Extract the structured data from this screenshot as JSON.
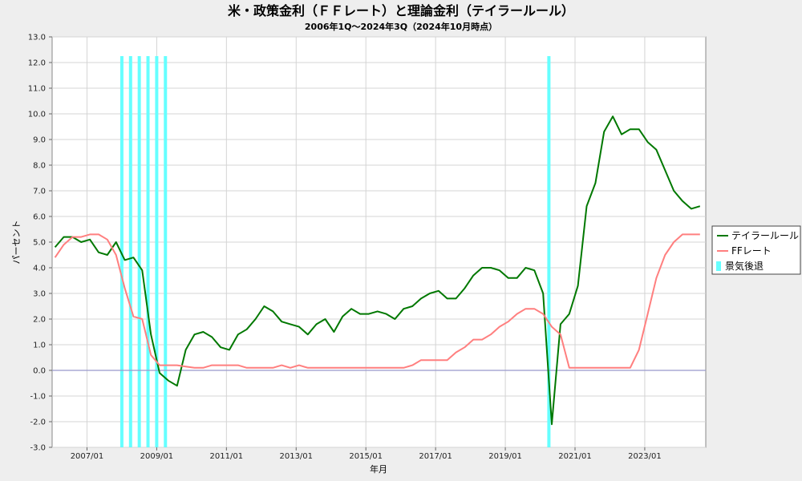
{
  "chart_data": {
    "type": "line",
    "title": "米・政策金利（ＦＦレート）と理論金利（テイラールール）",
    "subtitle": "2006年1Q～2024年3Q（2024年10月時点）",
    "xlabel": "年月",
    "ylabel": "パーセント",
    "ylim": [
      -3.0,
      13.0
    ],
    "yticks": [
      "-3.0",
      "-2.0",
      "-1.0",
      "0.0",
      "1.0",
      "2.0",
      "3.0",
      "4.0",
      "5.0",
      "6.0",
      "7.0",
      "8.0",
      "9.0",
      "10.0",
      "11.0",
      "12.0",
      "13.0"
    ],
    "xlim": [
      "2006-01",
      "2024-10"
    ],
    "xticks": [
      "2007/01",
      "2009/01",
      "2011/01",
      "2013/01",
      "2015/01",
      "2017/01",
      "2019/01",
      "2021/01",
      "2023/01"
    ],
    "grid": true,
    "legend_position": "right",
    "x": [
      "2006Q1",
      "2006Q2",
      "2006Q3",
      "2006Q4",
      "2007Q1",
      "2007Q2",
      "2007Q3",
      "2007Q4",
      "2008Q1",
      "2008Q2",
      "2008Q3",
      "2008Q4",
      "2009Q1",
      "2009Q2",
      "2009Q3",
      "2009Q4",
      "2010Q1",
      "2010Q2",
      "2010Q3",
      "2010Q4",
      "2011Q1",
      "2011Q2",
      "2011Q3",
      "2011Q4",
      "2012Q1",
      "2012Q2",
      "2012Q3",
      "2012Q4",
      "2013Q1",
      "2013Q2",
      "2013Q3",
      "2013Q4",
      "2014Q1",
      "2014Q2",
      "2014Q3",
      "2014Q4",
      "2015Q1",
      "2015Q2",
      "2015Q3",
      "2015Q4",
      "2016Q1",
      "2016Q2",
      "2016Q3",
      "2016Q4",
      "2017Q1",
      "2017Q2",
      "2017Q3",
      "2017Q4",
      "2018Q1",
      "2018Q2",
      "2018Q3",
      "2018Q4",
      "2019Q1",
      "2019Q2",
      "2019Q3",
      "2019Q4",
      "2020Q1",
      "2020Q2",
      "2020Q3",
      "2020Q4",
      "2021Q1",
      "2021Q2",
      "2021Q3",
      "2021Q4",
      "2022Q1",
      "2022Q2",
      "2022Q3",
      "2022Q4",
      "2023Q1",
      "2023Q2",
      "2023Q3",
      "2023Q4",
      "2024Q1",
      "2024Q2",
      "2024Q3"
    ],
    "series": [
      {
        "name": "テイラールール",
        "color": "#007800",
        "values": [
          4.8,
          5.2,
          5.2,
          5.0,
          5.1,
          4.6,
          4.5,
          5.0,
          4.3,
          4.4,
          3.9,
          1.4,
          -0.1,
          -0.4,
          -0.6,
          0.8,
          1.4,
          1.5,
          1.3,
          0.9,
          0.8,
          1.4,
          1.6,
          2.0,
          2.5,
          2.3,
          1.9,
          1.8,
          1.7,
          1.4,
          1.8,
          2.0,
          1.5,
          2.1,
          2.4,
          2.2,
          2.2,
          2.3,
          2.2,
          2.0,
          2.4,
          2.5,
          2.8,
          3.0,
          3.1,
          2.8,
          2.8,
          3.2,
          3.7,
          4.0,
          4.0,
          3.9,
          3.6,
          3.6,
          4.0,
          3.9,
          3.0,
          -2.1,
          1.8,
          2.2,
          3.3,
          6.4,
          7.3,
          9.3,
          9.9,
          9.2,
          9.4,
          9.4,
          8.9,
          8.6,
          7.8,
          7.0,
          6.6,
          6.3,
          6.4
        ]
      },
      {
        "name": "FFレート",
        "color": "#ff7f7f",
        "values": [
          4.4,
          4.9,
          5.2,
          5.2,
          5.3,
          5.3,
          5.1,
          4.5,
          3.2,
          2.1,
          2.0,
          0.6,
          0.2,
          0.2,
          0.2,
          0.15,
          0.1,
          0.1,
          0.2,
          0.2,
          0.2,
          0.2,
          0.1,
          0.1,
          0.1,
          0.1,
          0.2,
          0.1,
          0.2,
          0.1,
          0.1,
          0.1,
          0.1,
          0.1,
          0.1,
          0.1,
          0.1,
          0.1,
          0.1,
          0.1,
          0.1,
          0.2,
          0.4,
          0.4,
          0.4,
          0.4,
          0.7,
          0.9,
          1.2,
          1.2,
          1.4,
          1.7,
          1.9,
          2.2,
          2.4,
          2.4,
          2.2,
          1.7,
          1.4,
          0.1,
          0.1,
          0.1,
          0.1,
          0.1,
          0.1,
          0.1,
          0.1,
          0.8,
          2.2,
          3.6,
          4.5,
          5.0,
          5.3,
          5.3,
          5.3
        ]
      }
    ],
    "recession": {
      "name": "景気後退",
      "color": "#66ffff",
      "periods": [
        "2008-01",
        "2008-04",
        "2008-07",
        "2008-10",
        "2009-01",
        "2009-04",
        "2020-04"
      ]
    }
  }
}
